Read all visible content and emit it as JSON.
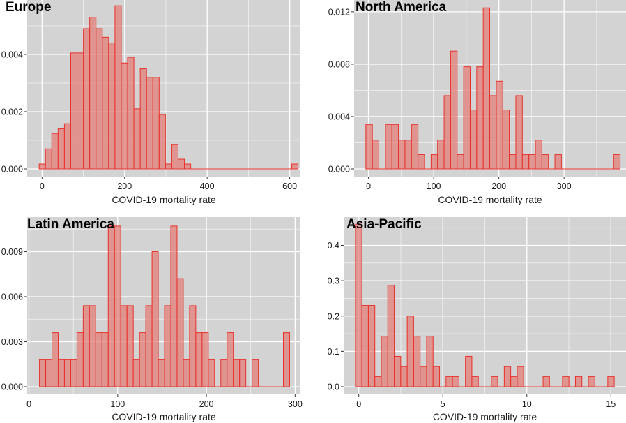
{
  "chart_data": [
    {
      "type": "bar",
      "subtype": "histogram",
      "title": "Europe",
      "xlabel": "COVID-19 mortality rate",
      "ylabel": "",
      "xlim": [
        -36,
        626
      ],
      "ylim": [
        0,
        0.0059
      ],
      "xticks": [
        0,
        200,
        400,
        600
      ],
      "xtick_labels": [
        "0",
        "200",
        "400",
        "600"
      ],
      "yticks": [
        0.0,
        0.002,
        0.004
      ],
      "ytick_labels": [
        "0.000",
        "0.002",
        "0.004"
      ],
      "x_minor": [
        100,
        300,
        500
      ],
      "y_minor": [
        0.001,
        0.003,
        0.005
      ],
      "grid": true,
      "bin_start": -7,
      "bin_width": 15.3,
      "values": [
        0.00017,
        0.0007,
        0.00124,
        0.0014,
        0.00158,
        0.00405,
        0.00405,
        0.0049,
        0.0053,
        0.0049,
        0.0046,
        0.0044,
        0.0057,
        0.0037,
        0.0039,
        0.0021,
        0.0035,
        0.0032,
        0.0032,
        0.0019,
        0.00017,
        0.00085,
        0.00034,
        0.00017,
        0,
        0,
        0,
        0,
        0,
        0,
        0,
        0,
        0,
        0,
        0,
        0,
        0,
        0,
        0,
        0,
        0.00017
      ]
    },
    {
      "type": "bar",
      "subtype": "histogram",
      "title": "North America",
      "xlabel": "COVID-19 mortality rate",
      "ylabel": "",
      "xlim": [
        -22,
        395
      ],
      "ylim": [
        0,
        0.0129
      ],
      "xticks": [
        0,
        100,
        200,
        300
      ],
      "xtick_labels": [
        "0",
        "100",
        "200",
        "300"
      ],
      "yticks": [
        0.0,
        0.004,
        0.008,
        0.012
      ],
      "ytick_labels": [
        "0.000",
        "0.004",
        "0.008",
        "0.012"
      ],
      "x_minor": [
        50,
        150,
        250,
        350
      ],
      "y_minor": [
        0.002,
        0.006,
        0.01
      ],
      "grid": true,
      "bin_start": -4,
      "bin_width": 10,
      "values": [
        0.0034,
        0.0022,
        0,
        0.0034,
        0.0034,
        0.0022,
        0.0022,
        0.0034,
        0.0011,
        0,
        0.0011,
        0.0022,
        0.0056,
        0.009,
        0.0011,
        0.0078,
        0.0045,
        0.0078,
        0.0123,
        0.0056,
        0.0067,
        0.0045,
        0.0011,
        0.0056,
        0.0011,
        0.0011,
        0.0022,
        0.0011,
        0,
        0.0011,
        0,
        0,
        0,
        0,
        0,
        0,
        0,
        0,
        0.0011
      ]
    },
    {
      "type": "bar",
      "subtype": "histogram",
      "title": "Latin America",
      "xlabel": "COVID-19 mortality rate",
      "ylabel": "",
      "xlim": [
        -2,
        306
      ],
      "ylim": [
        0,
        0.0113
      ],
      "xticks": [
        0,
        100,
        200,
        300
      ],
      "xtick_labels": [
        "0",
        "100",
        "200",
        "300"
      ],
      "yticks": [
        0.0,
        0.003,
        0.006,
        0.009
      ],
      "ytick_labels": [
        "0.000",
        "0.003",
        "0.006",
        "0.009"
      ],
      "x_minor": [
        50,
        150,
        250
      ],
      "y_minor": [
        0.0015,
        0.0045,
        0.0075,
        0.0105
      ],
      "grid": true,
      "bin_start": 11.8,
      "bin_width": 7.05,
      "values": [
        0.0018,
        0.0018,
        0.0036,
        0.0018,
        0.0018,
        0.0018,
        0.0036,
        0.0054,
        0.0054,
        0.0036,
        0.0036,
        0.0107,
        0.0107,
        0.0054,
        0.0054,
        0.0018,
        0.0036,
        0.0054,
        0.009,
        0.0018,
        0.0054,
        0.0107,
        0.0072,
        0.0018,
        0.0054,
        0.0036,
        0.0036,
        0.0018,
        0,
        0.0018,
        0.0036,
        0.0018,
        0.0018,
        0,
        0.0018,
        0,
        0,
        0,
        0,
        0.0036
      ]
    },
    {
      "type": "bar",
      "subtype": "histogram",
      "title": "Asia-Pacific",
      "xlabel": "COVID-19 mortality rate",
      "ylabel": "",
      "xlim": [
        -0.9,
        15.9
      ],
      "ylim": [
        0,
        0.48
      ],
      "xticks": [
        0,
        5,
        10,
        15
      ],
      "xtick_labels": [
        "0",
        "5",
        "10",
        "15"
      ],
      "yticks": [
        0.0,
        0.1,
        0.2,
        0.3,
        0.4
      ],
      "ytick_labels": [
        "0.0",
        "0.1",
        "0.2",
        "0.3",
        "0.4"
      ],
      "x_minor": [
        2.5,
        7.5,
        12.5
      ],
      "y_minor": [
        0.05,
        0.15,
        0.25,
        0.35,
        0.45
      ],
      "grid": true,
      "bin_start": -0.2,
      "bin_width": 0.385,
      "values": [
        0.46,
        0.23,
        0.23,
        0.029,
        0.143,
        0.287,
        0.086,
        0.057,
        0.2,
        0.143,
        0.057,
        0.143,
        0.057,
        0,
        0.029,
        0.029,
        0,
        0.086,
        0.029,
        0,
        0,
        0.029,
        0,
        0.057,
        0.029,
        0.057,
        0,
        0,
        0,
        0.029,
        0,
        0,
        0.029,
        0,
        0.029,
        0,
        0.029,
        0,
        0,
        0.029
      ]
    }
  ],
  "colors": {
    "panel_background": "#d3d3d3",
    "bar_fill": "#e47f79",
    "bar_outline": "#e8312b",
    "grid": "#ffffff"
  }
}
